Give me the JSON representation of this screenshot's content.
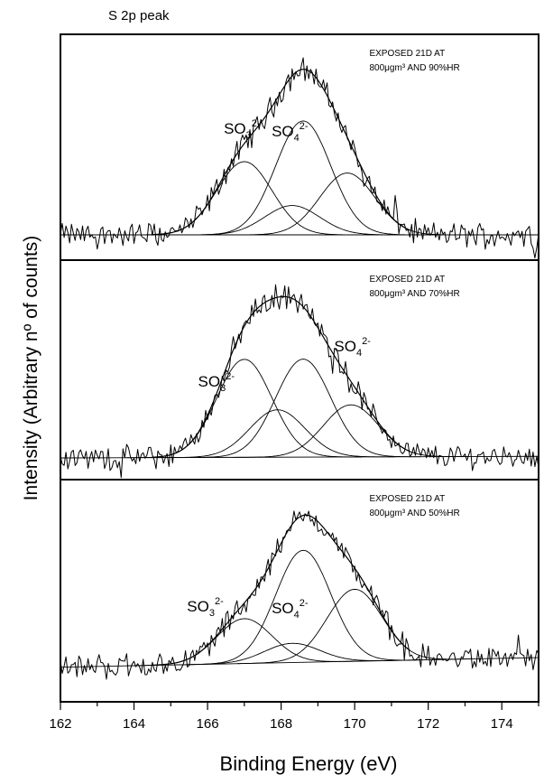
{
  "chart_data": {
    "type": "line",
    "title": "S 2p peak",
    "xlabel": "Binding Energy (eV)",
    "ylabel": "Intensity (Arbitrary nº of counts)",
    "xlim": [
      162,
      175
    ],
    "xticks": [
      162,
      164,
      166,
      168,
      170,
      172,
      174
    ],
    "grid": false,
    "panels": [
      {
        "condition_line1": "EXPOSED 21D AT",
        "condition_line2": "800μgm³ AND 90%HR",
        "labels": [
          {
            "base": "SO",
            "sub": "3",
            "sup": "2-",
            "x": 167.3
          },
          {
            "base": "SO",
            "sub": "4",
            "sup": "2-",
            "x": 168.6
          }
        ],
        "baseline": [
          0.1,
          0.1
        ],
        "components": [
          {
            "center": 167.0,
            "height": 0.45,
            "width": 0.75
          },
          {
            "center": 168.3,
            "height": 0.18,
            "width": 0.75
          },
          {
            "center": 168.6,
            "height": 0.7,
            "width": 0.75
          },
          {
            "center": 169.8,
            "height": 0.38,
            "width": 0.75
          }
        ]
      },
      {
        "condition_line1": "EXPOSED 21D AT",
        "condition_line2": "800μgm³ AND 70%HR",
        "labels": [
          {
            "base": "SO",
            "sub": "3",
            "sup": "2-",
            "x": 166.6
          },
          {
            "base": "SO",
            "sub": "4",
            "sup": "2-",
            "x": 170.3
          }
        ],
        "baseline": [
          0.08,
          0.09
        ],
        "components": [
          {
            "center": 167.0,
            "height": 0.62,
            "width": 0.75
          },
          {
            "center": 167.9,
            "height": 0.3,
            "width": 0.75
          },
          {
            "center": 168.6,
            "height": 0.62,
            "width": 0.75
          },
          {
            "center": 169.9,
            "height": 0.33,
            "width": 0.75
          }
        ]
      },
      {
        "condition_line1": "EXPOSED 21D AT",
        "condition_line2": "800μgm³ AND 50%HR",
        "labels": [
          {
            "base": "SO",
            "sub": "3",
            "sup": "2-",
            "x": 166.3
          },
          {
            "base": "SO",
            "sub": "4",
            "sup": "2-",
            "x": 168.6
          }
        ],
        "baseline": [
          0.16,
          0.22
        ],
        "components": [
          {
            "center": 167.0,
            "height": 0.28,
            "width": 0.75
          },
          {
            "center": 168.3,
            "height": 0.12,
            "width": 0.75
          },
          {
            "center": 168.6,
            "height": 0.7,
            "width": 0.75
          },
          {
            "center": 170.0,
            "height": 0.45,
            "width": 0.75
          }
        ]
      }
    ]
  }
}
